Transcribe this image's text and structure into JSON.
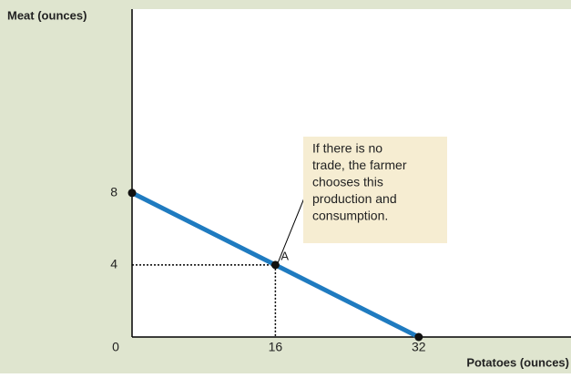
{
  "chart_data": {
    "type": "line",
    "x_label": "Potatoes (ounces)",
    "y_label": "Meat (ounces)",
    "x": [
      0,
      16,
      32
    ],
    "values": [
      8,
      4,
      0
    ],
    "color": "#1f7bc0",
    "xlim": [
      0,
      49
    ],
    "ylim": [
      0,
      18.2
    ],
    "xticks": [
      0,
      16,
      32
    ],
    "yticks": [
      4,
      8
    ],
    "labeled_point": {
      "x": 16,
      "y": 4,
      "label": "A"
    },
    "callout": [
      "If there is no",
      "trade, the farmer",
      "chooses this",
      "production and",
      "consumption."
    ]
  }
}
